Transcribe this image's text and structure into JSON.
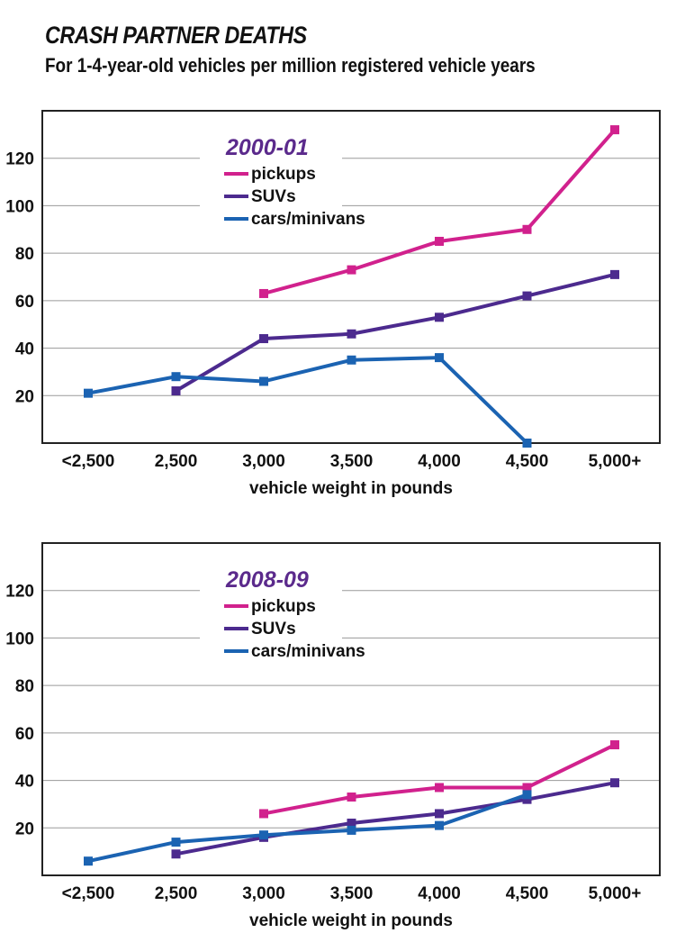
{
  "title": "CRASH PARTNER DEATHS",
  "subtitle": "For 1-4-year-old vehicles per million registered vehicle years",
  "colors": {
    "pickups": "#d1218d",
    "suvs": "#4c2a8e",
    "cars": "#1b63b2",
    "grid": "#9a9a9a",
    "frame": "#222222"
  },
  "chart_data": [
    {
      "type": "line",
      "title": "2000-01",
      "xlabel": "vehicle weight in pounds",
      "ylabel": "",
      "categories": [
        "<2,500",
        "2,500",
        "3,000",
        "3,500",
        "4,000",
        "4,500",
        "5,000+"
      ],
      "yticks": [
        20,
        40,
        60,
        80,
        100,
        120
      ],
      "ylim": [
        0,
        140
      ],
      "grid": true,
      "legend": "top-left",
      "series": [
        {
          "name": "pickups",
          "color_key": "pickups",
          "values": [
            null,
            null,
            63,
            73,
            85,
            90,
            132
          ]
        },
        {
          "name": "SUVs",
          "color_key": "suvs",
          "values": [
            null,
            22,
            44,
            46,
            53,
            62,
            71
          ]
        },
        {
          "name": "cars/minivans",
          "color_key": "cars",
          "values": [
            21,
            28,
            26,
            35,
            36,
            0,
            null
          ]
        }
      ]
    },
    {
      "type": "line",
      "title": "2008-09",
      "xlabel": "vehicle weight in pounds",
      "ylabel": "",
      "categories": [
        "<2,500",
        "2,500",
        "3,000",
        "3,500",
        "4,000",
        "4,500",
        "5,000+"
      ],
      "yticks": [
        20,
        40,
        60,
        80,
        100,
        120
      ],
      "ylim": [
        0,
        140
      ],
      "grid": true,
      "legend": "top-left",
      "series": [
        {
          "name": "pickups",
          "color_key": "pickups",
          "values": [
            null,
            null,
            26,
            33,
            37,
            37,
            55
          ]
        },
        {
          "name": "SUVs",
          "color_key": "suvs",
          "values": [
            null,
            9,
            16,
            22,
            26,
            32,
            39
          ]
        },
        {
          "name": "cars/minivans",
          "color_key": "cars",
          "values": [
            6,
            14,
            17,
            19,
            21,
            34,
            null
          ]
        }
      ]
    }
  ]
}
